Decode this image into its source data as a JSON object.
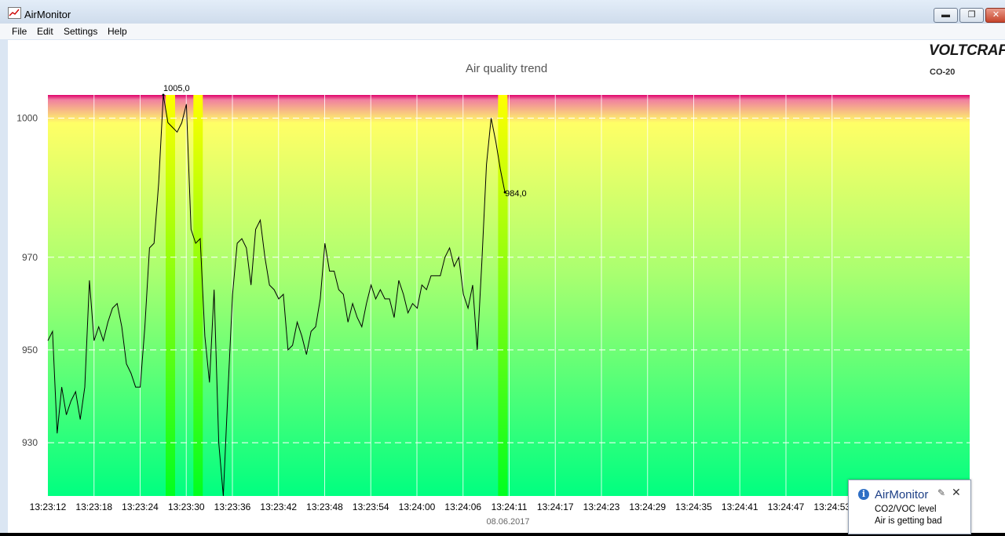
{
  "window": {
    "title": "AirMonitor",
    "minimize_glyph": "▬",
    "maximize_glyph": "❐",
    "close_glyph": "✕"
  },
  "menu": [
    "File",
    "Edit",
    "Settings",
    "Help"
  ],
  "brand": {
    "name": "VOLTCRAFT",
    "model": "CO-20"
  },
  "notification": {
    "title": "AirMonitor",
    "line1": "CO2/VOC level",
    "line2": "Air is getting bad",
    "pin_icon": "pin-icon",
    "close_glyph": "✕"
  },
  "colors": {
    "gradient_top": "#e0006a",
    "gradient_yellow": "#ffff66",
    "gradient_bottom": "#00ff80",
    "highlight_band": "#ffff00"
  },
  "chart_data": {
    "type": "line",
    "title": "Air quality trend",
    "xlabel": "08.06.2017",
    "ylabel": "",
    "ylim": [
      918.5,
      1005
    ],
    "yticks": [
      1000,
      970,
      950,
      930
    ],
    "xtick_labels": [
      "13:23:12",
      "13:23:18",
      "13:23:24",
      "13:23:30",
      "13:23:36",
      "13:23:42",
      "13:23:48",
      "13:23:54",
      "13:24:00",
      "13:24:06",
      "13:24:11",
      "13:24:17",
      "13:24:23",
      "13:24:29",
      "13:24:35",
      "13:24:41",
      "13:24:47",
      "13:24:53"
    ],
    "grid": true,
    "highlight_indices": [
      25,
      31,
      97
    ],
    "annotations": [
      {
        "index": 25,
        "text": "1005,0"
      },
      {
        "index": 99,
        "text": "984,0"
      }
    ],
    "values": [
      952,
      954,
      932,
      942,
      936,
      939,
      941,
      935,
      942,
      965,
      952,
      955,
      952,
      956,
      959,
      960,
      955,
      947,
      945,
      942,
      942,
      955,
      972,
      973,
      986,
      1005,
      999,
      998,
      997,
      999,
      1003,
      976,
      973,
      974,
      953,
      943,
      963,
      930,
      918.5,
      941,
      962,
      973,
      974,
      972,
      964,
      976,
      978,
      970,
      964,
      963,
      961,
      962,
      950,
      951,
      956,
      953,
      949,
      954,
      955,
      961,
      973,
      967,
      967,
      963,
      962,
      956,
      960,
      957,
      955,
      960,
      964,
      961,
      963,
      961,
      961,
      957,
      965,
      962,
      958,
      960,
      959,
      964,
      963,
      966,
      966,
      966,
      970,
      972,
      968,
      970,
      962,
      959,
      964,
      950,
      969,
      990,
      1000,
      995,
      989,
      984
    ]
  }
}
